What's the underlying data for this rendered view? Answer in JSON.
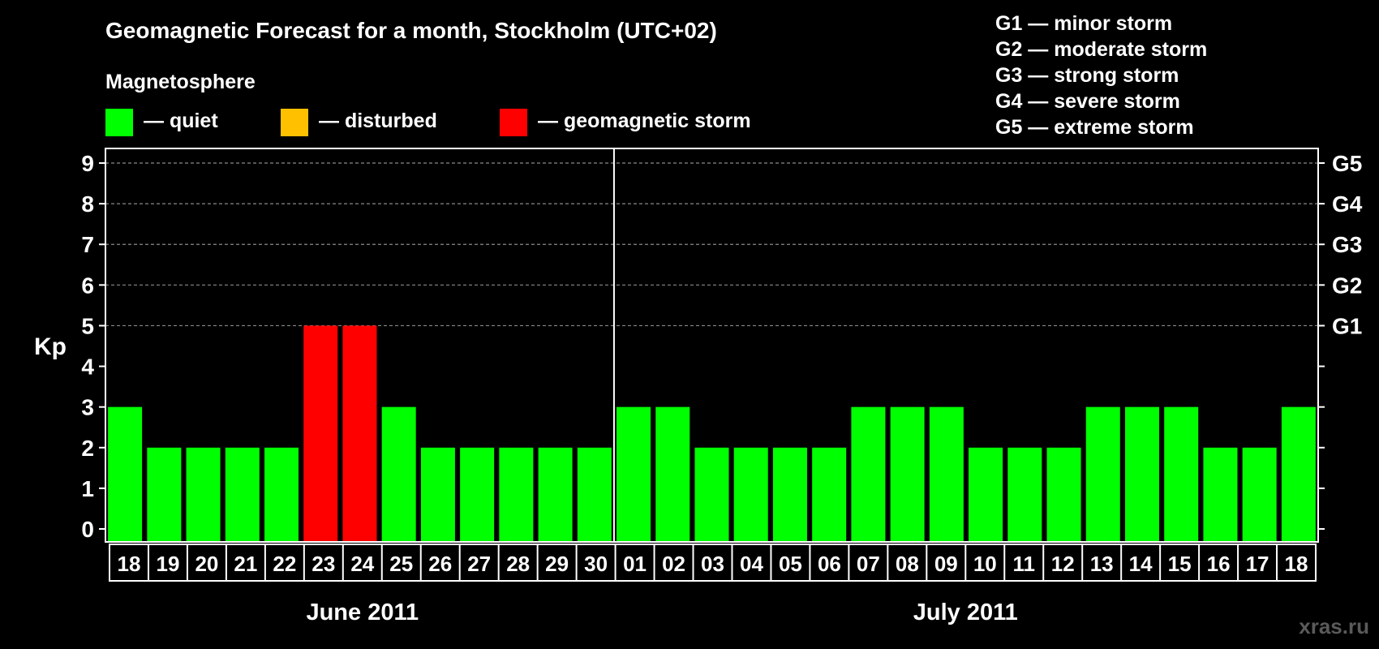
{
  "title": "Geomagnetic Forecast for a month, Stockholm (UTC+02)",
  "legend": {
    "heading": "Magnetosphere",
    "items": [
      {
        "label": "— quiet",
        "color": "#00ff00"
      },
      {
        "label": "— disturbed",
        "color": "#ffc000"
      },
      {
        "label": "— geomagnetic storm",
        "color": "#ff0000"
      }
    ],
    "storm_levels": [
      "G1 — minor storm",
      "G2 — moderate storm",
      "G3 — strong storm",
      "G4 — severe storm",
      "G5 — extreme storm"
    ]
  },
  "watermark": "xras.ru",
  "chart_data": {
    "type": "bar",
    "title": "Geomagnetic Forecast for a month, Stockholm (UTC+02)",
    "ylabel": "Kp",
    "xlabel": "",
    "ylim": [
      0,
      9
    ],
    "y_ticks": [
      "0",
      "1",
      "2",
      "3",
      "4",
      "5",
      "6",
      "7",
      "8",
      "9"
    ],
    "right_axis_labels": [
      {
        "kp": 5,
        "label": "G1"
      },
      {
        "kp": 6,
        "label": "G2"
      },
      {
        "kp": 7,
        "label": "G3"
      },
      {
        "kp": 8,
        "label": "G4"
      },
      {
        "kp": 9,
        "label": "G5"
      }
    ],
    "grid": "dashed horizontal at Kp 5-9",
    "months": [
      {
        "label": "June 2011",
        "start_index": 0,
        "count": 13
      },
      {
        "label": "July 2011",
        "start_index": 13,
        "count": 18
      }
    ],
    "categories": [
      "18",
      "19",
      "20",
      "21",
      "22",
      "23",
      "24",
      "25",
      "26",
      "27",
      "28",
      "29",
      "30",
      "01",
      "02",
      "03",
      "04",
      "05",
      "06",
      "07",
      "08",
      "09",
      "10",
      "11",
      "12",
      "13",
      "14",
      "15",
      "16",
      "17",
      "18"
    ],
    "values": [
      3,
      2,
      2,
      2,
      2,
      5,
      5,
      3,
      2,
      2,
      2,
      2,
      2,
      3,
      3,
      2,
      2,
      2,
      2,
      3,
      3,
      3,
      2,
      2,
      2,
      3,
      3,
      3,
      2,
      2,
      3
    ],
    "colors": {
      "quiet": "#00ff00",
      "disturbed": "#ffc000",
      "storm": "#ff0000"
    }
  }
}
